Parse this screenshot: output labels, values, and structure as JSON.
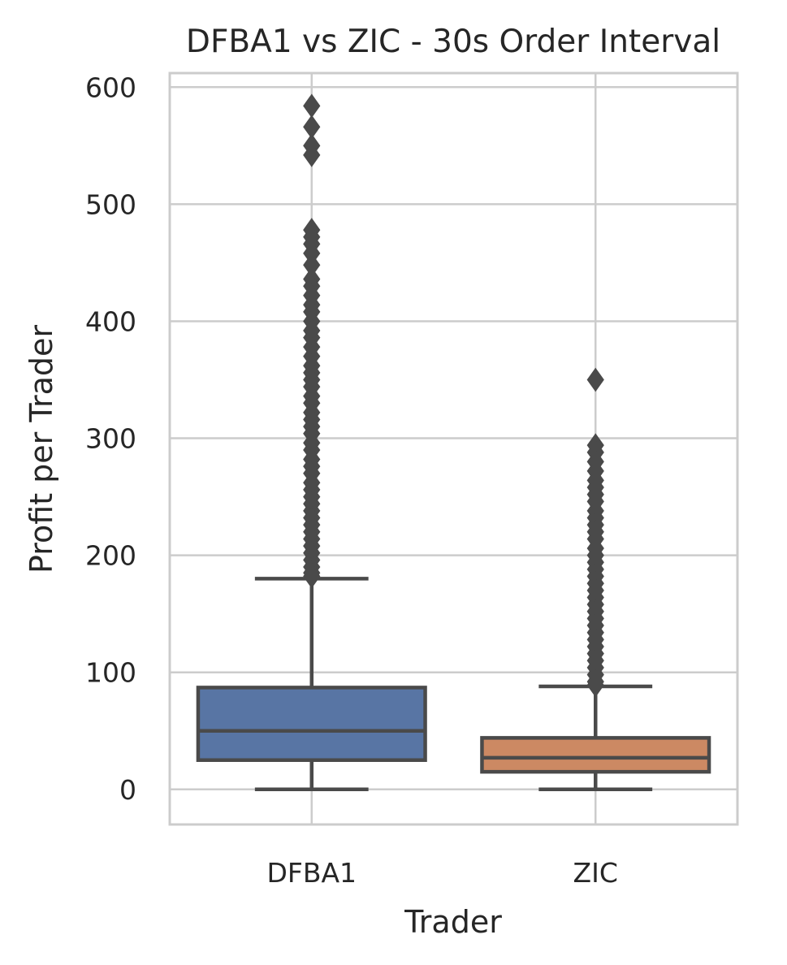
{
  "chart_data": {
    "type": "box",
    "title": "DFBA1 vs ZIC - 30s Order Interval",
    "xlabel": "Trader",
    "ylabel": "Profit per Trader",
    "categories": [
      "DFBA1",
      "ZIC"
    ],
    "ylim": [
      -30,
      612
    ],
    "yticks": [
      0,
      100,
      200,
      300,
      400,
      500,
      600
    ],
    "grid": true,
    "legend": false,
    "colors": {
      "DFBA1": "#5875a4",
      "ZIC": "#cc8963",
      "line": "#4a4a4a",
      "grid": "#cccccc",
      "spine": "#cccccc"
    },
    "series": [
      {
        "name": "DFBA1",
        "whisker_low": 0,
        "q1": 25,
        "median": 50,
        "q3": 87,
        "whisker_high": 180,
        "outliers": [
          584,
          566,
          550,
          542,
          478,
          472,
          466,
          458,
          448,
          436,
          430,
          422,
          414,
          408,
          400,
          392,
          386,
          378,
          370,
          362,
          356,
          350,
          344,
          336,
          330,
          322,
          316,
          310,
          304,
          296,
          290,
          282,
          276,
          270,
          262,
          256,
          250,
          244,
          238,
          232,
          226,
          220,
          214,
          208,
          202,
          196,
          190,
          185,
          182
        ]
      },
      {
        "name": "ZIC",
        "whisker_low": 0,
        "q1": 15,
        "median": 27,
        "q3": 44,
        "whisker_high": 88,
        "outliers": [
          350,
          294,
          288,
          280,
          272,
          264,
          258,
          252,
          246,
          238,
          232,
          226,
          220,
          214,
          206,
          200,
          194,
          188,
          182,
          176,
          170,
          164,
          158,
          152,
          146,
          140,
          134,
          128,
          122,
          116,
          110,
          104,
          98,
          92,
          89
        ]
      }
    ]
  }
}
